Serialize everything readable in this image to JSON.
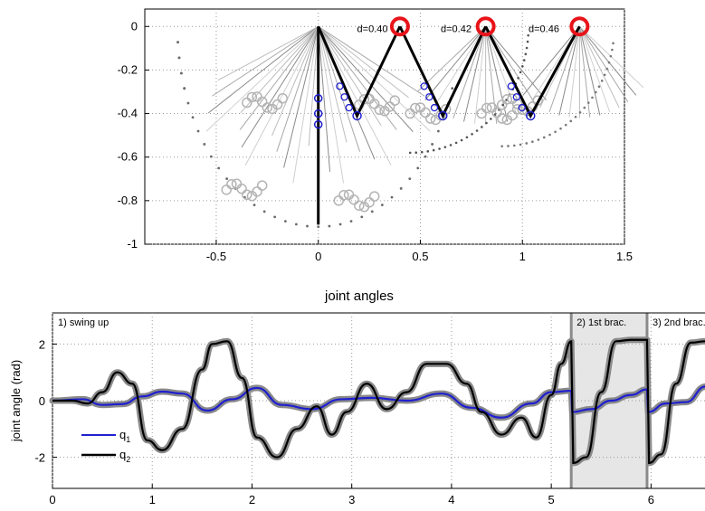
{
  "chart_data": [
    {
      "type": "scatter",
      "title": "",
      "xlabel": "",
      "ylabel": "",
      "xlim": [
        -0.85,
        1.5
      ],
      "ylim": [
        -1.0,
        0.08
      ],
      "xticks": [
        "-0.5",
        "0",
        "0.5",
        "1",
        "1.5"
      ],
      "xtick_values": [
        -0.5,
        0,
        0.5,
        1,
        1.5
      ],
      "yticks": [
        "0",
        "-0.2",
        "-0.4",
        "-0.6",
        "-0.8",
        "-1"
      ],
      "ytick_values": [
        0,
        -0.2,
        -0.4,
        -0.6,
        -0.8,
        -1
      ],
      "grid": true,
      "annotations": [
        {
          "text": "d=0.40",
          "x": 0.19,
          "y": -0.01
        },
        {
          "text": "d=0.42",
          "x": 0.6,
          "y": -0.01
        },
        {
          "text": "d=0.46",
          "x": 1.03,
          "y": -0.01
        }
      ],
      "targets": [
        {
          "x": 0.4,
          "y": 0.0
        },
        {
          "x": 0.82,
          "y": 0.0
        },
        {
          "x": 1.28,
          "y": 0.0
        }
      ],
      "poses": [
        {
          "x": [
            0,
            0.19,
            0.4
          ],
          "y": [
            0,
            -0.41,
            0
          ]
        },
        {
          "x": [
            0.4,
            0.61,
            0.82
          ],
          "y": [
            0,
            -0.41,
            0
          ]
        },
        {
          "x": [
            0.82,
            1.04,
            1.28
          ],
          "y": [
            0,
            -0.41,
            0
          ]
        }
      ],
      "hanging_link": {
        "x": [
          0,
          0
        ],
        "y": [
          0,
          -0.91
        ]
      },
      "colors": {
        "target": "#e8141a",
        "pose": "#000000",
        "joint": "#1f1fd0"
      }
    },
    {
      "type": "line",
      "title": "joint angles",
      "xlabel": "",
      "ylabel": "joint angle (rad)",
      "xlim": [
        0,
        6.55
      ],
      "ylim": [
        -3.1,
        3.1
      ],
      "xticks": [
        "0",
        "1",
        "2",
        "3",
        "4",
        "5",
        "6"
      ],
      "xtick_values": [
        0,
        1,
        2,
        3,
        4,
        5,
        6
      ],
      "yticks": [
        "2",
        "0",
        "-2"
      ],
      "ytick_values": [
        2,
        0,
        -2
      ],
      "phases": [
        {
          "label": "1) swing up",
          "start": 0,
          "end": 5.2
        },
        {
          "label": "2) 1st brac.",
          "start": 5.2,
          "end": 5.96
        },
        {
          "label": "3) 2nd brac.",
          "start": 5.96,
          "end": 6.55
        }
      ],
      "series": [
        {
          "name": "q1",
          "color": "#1f1fd0",
          "x": [
            0,
            0.3,
            0.5,
            0.7,
            0.9,
            1.1,
            1.3,
            1.55,
            1.8,
            2.05,
            2.3,
            2.6,
            2.9,
            3.2,
            3.55,
            3.9,
            4.2,
            4.5,
            4.8,
            5.0,
            5.2,
            5.21,
            5.4,
            5.6,
            5.8,
            5.96,
            5.97,
            6.15,
            6.35,
            6.55
          ],
          "values": [
            0,
            0.05,
            -0.15,
            -0.12,
            0.15,
            0.32,
            0.25,
            -0.35,
            0.05,
            0.45,
            -0.15,
            -0.3,
            0.05,
            0.1,
            0.0,
            0.25,
            -0.25,
            -0.6,
            -0.1,
            0.3,
            0.35,
            -0.4,
            -0.3,
            0.0,
            0.2,
            0.4,
            -0.4,
            -0.1,
            -0.05,
            0.5
          ]
        },
        {
          "name": "q2",
          "color": "#000000",
          "x": [
            0,
            0.2,
            0.35,
            0.5,
            0.65,
            0.8,
            0.95,
            1.1,
            1.3,
            1.5,
            1.6,
            1.75,
            1.9,
            2.05,
            2.25,
            2.45,
            2.65,
            2.8,
            2.95,
            3.15,
            3.35,
            3.55,
            3.75,
            3.95,
            4.15,
            4.3,
            4.5,
            4.7,
            4.85,
            5.0,
            5.1,
            5.2,
            5.22,
            5.35,
            5.5,
            5.65,
            5.8,
            5.96,
            5.98,
            6.1,
            6.25,
            6.4,
            6.55
          ],
          "values": [
            0,
            0.0,
            -0.1,
            0.3,
            1.0,
            0.6,
            -1.4,
            -1.75,
            -1.0,
            1.1,
            2.0,
            2.1,
            0.8,
            -1.3,
            -2.0,
            -1.0,
            -0.2,
            -1.2,
            -0.4,
            0.6,
            -0.3,
            0.3,
            1.3,
            1.3,
            0.6,
            -0.4,
            -1.2,
            -0.6,
            -1.3,
            0.2,
            1.3,
            2.1,
            -2.2,
            -2.0,
            0.3,
            2.1,
            2.15,
            2.15,
            -2.2,
            -1.9,
            0.6,
            2.05,
            2.1
          ]
        }
      ],
      "legend": {
        "position": "bottom-left"
      }
    }
  ],
  "labels": {
    "ann1": "d=0.40",
    "ann2": "d=0.42",
    "ann3": "d=0.46",
    "bottom_title": "joint angles",
    "bottom_ylabel": "joint angle (rad)",
    "phase1": "1) swing up",
    "phase2": "2) 1st brac.",
    "phase3": "3) 2nd brac.",
    "legend_q1_main": "q",
    "legend_q1_sub": "1",
    "legend_q2_main": "q",
    "legend_q2_sub": "2"
  }
}
